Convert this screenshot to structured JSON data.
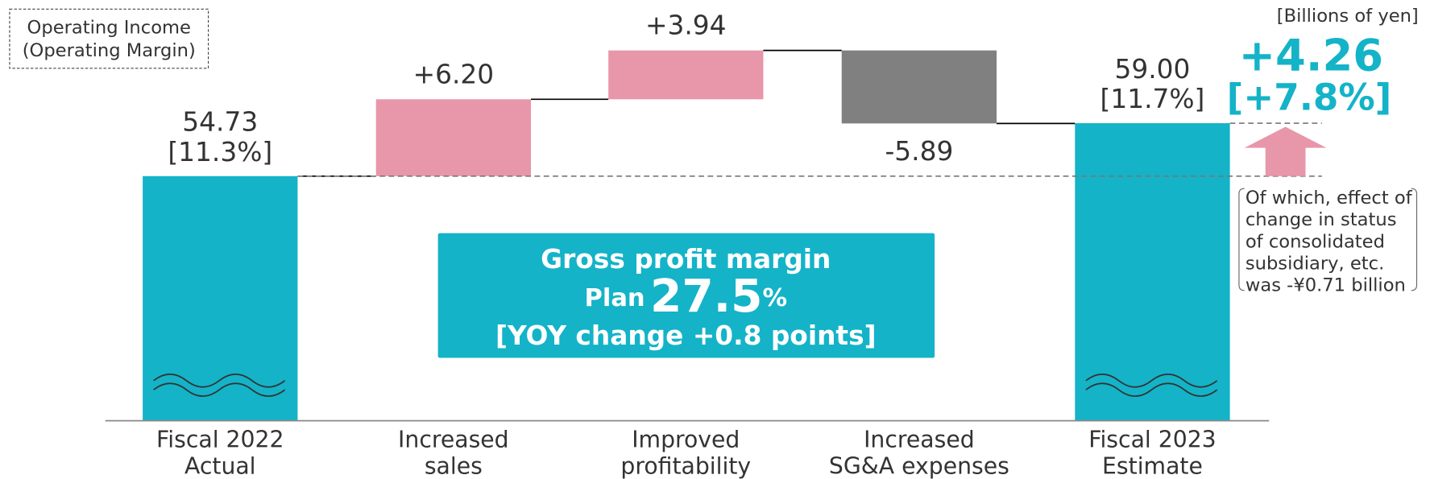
{
  "chart_data": {
    "type": "waterfall",
    "legend_lines": [
      "Operating Income",
      "(Operating Margin)"
    ],
    "unit_label": "[Billions of yen]",
    "categories": [
      [
        "Fiscal 2022",
        "Actual"
      ],
      [
        "Increased",
        "sales"
      ],
      [
        "Improved",
        "profitability"
      ],
      [
        "Increased",
        "SG&A expenses"
      ],
      [
        "Fiscal 2023",
        "Estimate"
      ]
    ],
    "values": [
      54.73,
      6.2,
      3.94,
      -5.89,
      59.0
    ],
    "value_labels": [
      "54.73",
      "+6.20",
      "+3.94",
      "-5.89",
      "59.00"
    ],
    "totals": [
      true,
      false,
      false,
      false,
      true
    ],
    "margin_labels": [
      "[11.3%]",
      null,
      null,
      null,
      "[11.7%]"
    ],
    "colors": {
      "total": "#14b3c8",
      "increase": "#e896aa",
      "decrease": "#808080"
    },
    "ylim": [
      35,
      66
    ],
    "axis_break": true,
    "change_value": "+4.26",
    "change_percent": "[+7.8%]",
    "note_lines": [
      "Of which, effect of",
      "change in status",
      "of consolidated",
      "subsidiary, etc.",
      "was -¥0.71 billion"
    ],
    "highlight": {
      "line1": "Gross profit margin",
      "plan": "Plan",
      "value": "27.5",
      "unit": "%",
      "line3": "[YOY change +0.8 points]"
    }
  }
}
